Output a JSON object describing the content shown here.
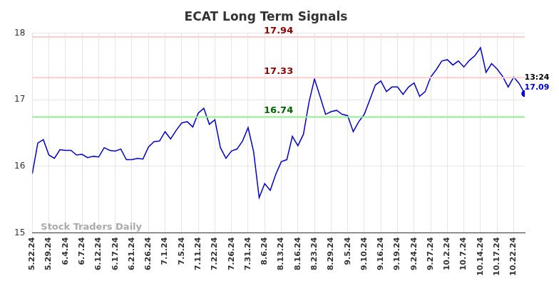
{
  "chart_data": {
    "type": "line",
    "title": "ECAT Long Term Signals",
    "categories": [
      "5.22.24",
      null,
      null,
      "5.29.24",
      null,
      null,
      "6.4.24",
      null,
      null,
      "6.7.24",
      null,
      null,
      "6.12.24",
      null,
      null,
      "6.17.24",
      null,
      null,
      "6.21.24",
      null,
      null,
      "6.26.24",
      null,
      null,
      "7.1.24",
      null,
      null,
      "7.5.24",
      null,
      null,
      "7.11.24",
      null,
      null,
      "7.22.24",
      null,
      null,
      "7.26.24",
      null,
      null,
      "7.31.24",
      null,
      null,
      "8.6.24",
      null,
      null,
      "8.13.24",
      null,
      null,
      "8.16.24",
      null,
      null,
      "8.23.24",
      null,
      null,
      "8.29.24",
      null,
      null,
      "9.5.24",
      null,
      null,
      "9.10.24",
      null,
      null,
      "9.16.24",
      null,
      null,
      "9.19.24",
      null,
      null,
      "9.24.24",
      null,
      null,
      "9.27.24",
      null,
      null,
      "10.2.24",
      null,
      null,
      "10.7.24",
      null,
      null,
      "10.14.24",
      null,
      null,
      "10.17.24",
      null,
      null,
      "10.22.24",
      null,
      null
    ],
    "values": [
      15.89,
      16.35,
      16.4,
      16.17,
      16.12,
      16.25,
      16.24,
      16.24,
      16.17,
      16.18,
      16.13,
      16.15,
      16.14,
      16.28,
      16.24,
      16.23,
      16.26,
      16.1,
      16.1,
      16.12,
      16.11,
      16.29,
      16.37,
      16.38,
      16.52,
      16.41,
      16.54,
      16.65,
      16.67,
      16.59,
      16.8,
      16.87,
      16.63,
      16.7,
      16.28,
      16.12,
      16.23,
      16.26,
      16.38,
      16.58,
      16.22,
      15.53,
      15.74,
      15.64,
      15.88,
      16.07,
      16.1,
      16.45,
      16.31,
      16.48,
      16.96,
      17.31,
      17.05,
      16.78,
      16.82,
      16.84,
      16.78,
      16.76,
      16.52,
      16.67,
      16.78,
      17.0,
      17.22,
      17.28,
      17.12,
      17.19,
      17.19,
      17.08,
      17.19,
      17.25,
      17.05,
      17.12,
      17.34,
      17.45,
      17.58,
      17.6,
      17.52,
      17.58,
      17.49,
      17.59,
      17.66,
      17.78,
      17.41,
      17.54,
      17.46,
      17.35,
      17.19,
      17.34,
      17.24,
      17.09
    ],
    "color": "#0000cc",
    "ylim": [
      15,
      18
    ],
    "yticks": [
      15,
      16,
      17,
      18
    ],
    "grid": true,
    "reference_lines": [
      {
        "value": 17.94,
        "label": "17.94",
        "color": "#8b0000"
      },
      {
        "value": 17.33,
        "label": "17.33",
        "color": "#8b0000"
      },
      {
        "value": 16.74,
        "label": "16.74",
        "color": "#006400"
      }
    ],
    "last_point": {
      "time": "13:24",
      "value_label": "17.09"
    },
    "watermark": "Stock Traders Daily"
  }
}
